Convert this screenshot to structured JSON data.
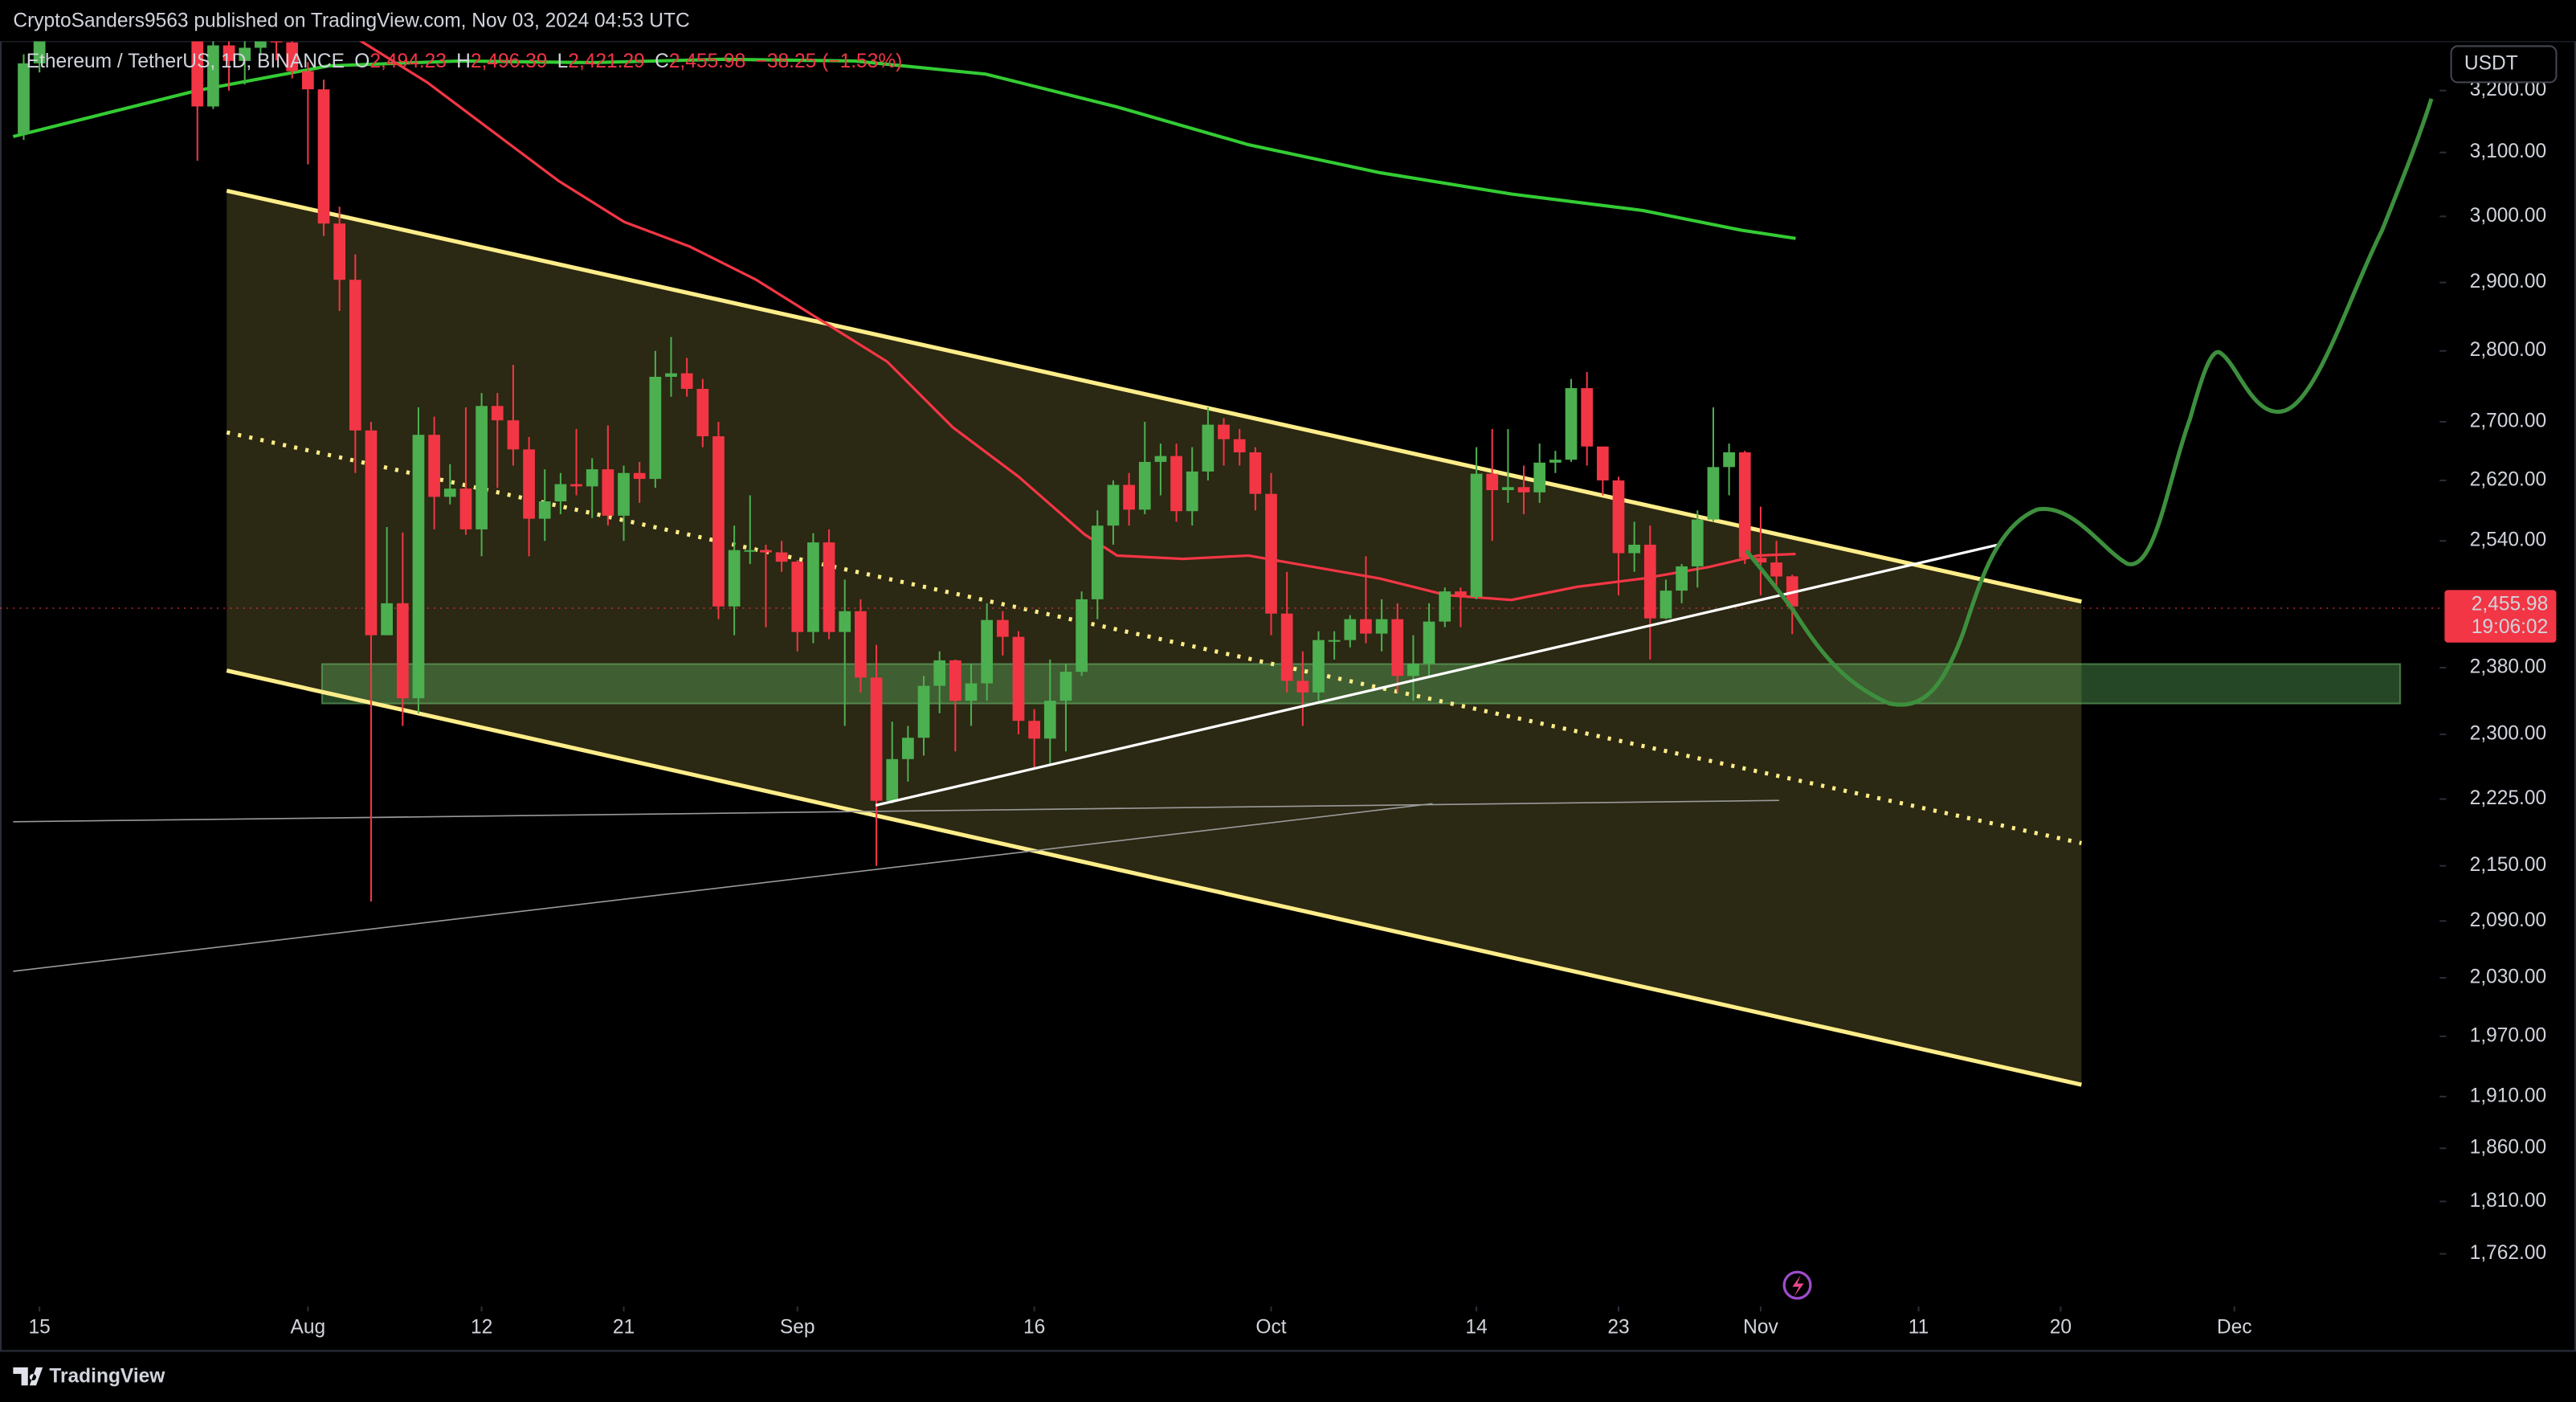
{
  "header": "CryptoSanders9563 published on TradingView.com, Nov 03, 2024 04:53 UTC",
  "footer_logo": "TradingView",
  "chart_data": {
    "type": "candlestick",
    "legend": {
      "symbol": "Ethereum / TetherUS, 1D, BINANCE",
      "items": [
        {
          "key": "O",
          "value": "2,494.23"
        },
        {
          "key": "H",
          "value": "2,496.39"
        },
        {
          "key": "L",
          "value": "2,421.29"
        },
        {
          "key": "C",
          "value": "2,455.98"
        }
      ],
      "change": "−38.25 (−1.53%)"
    },
    "currency": "USDT",
    "price_tag": {
      "value": 2455.98,
      "label": "2,455.98"
    },
    "countdown": "19:06:02",
    "up_color": "#4caf50",
    "down_color": "#f23645",
    "log_scale": true,
    "grid": false,
    "xlim": [
      "2024-07-12",
      "2024-12-14"
    ],
    "ylim": [
      1715,
      3282
    ],
    "xticks": [
      {
        "value": "2024-07-15",
        "label": "15"
      },
      {
        "value": "2024-08-01",
        "label": "Aug"
      },
      {
        "value": "2024-08-12",
        "label": "12"
      },
      {
        "value": "2024-08-21",
        "label": "21"
      },
      {
        "value": "2024-09-01",
        "label": "Sep"
      },
      {
        "value": "2024-09-16",
        "label": "16"
      },
      {
        "value": "2024-10-01",
        "label": "Oct"
      },
      {
        "value": "2024-10-14",
        "label": "14"
      },
      {
        "value": "2024-10-23",
        "label": "23"
      },
      {
        "value": "2024-11-01",
        "label": "Nov"
      },
      {
        "value": "2024-11-11",
        "label": "11"
      },
      {
        "value": "2024-11-20",
        "label": "20"
      },
      {
        "value": "2024-12-01",
        "label": "Dec"
      }
    ],
    "yticks": [
      {
        "value": 3200,
        "label": "3,200.00"
      },
      {
        "value": 3100,
        "label": "3,100.00"
      },
      {
        "value": 3000,
        "label": "3,000.00"
      },
      {
        "value": 2900,
        "label": "2,900.00"
      },
      {
        "value": 2800,
        "label": "2,800.00"
      },
      {
        "value": 2700,
        "label": "2,700.00"
      },
      {
        "value": 2620,
        "label": "2,620.00"
      },
      {
        "value": 2540,
        "label": "2,540.00"
      },
      {
        "value": 2380,
        "label": "2,380.00"
      },
      {
        "value": 2300,
        "label": "2,300.00"
      },
      {
        "value": 2225,
        "label": "2,225.00"
      },
      {
        "value": 2150,
        "label": "2,150.00"
      },
      {
        "value": 2090,
        "label": "2,090.00"
      },
      {
        "value": 2030,
        "label": "2,030.00"
      },
      {
        "value": 1970,
        "label": "1,970.00"
      },
      {
        "value": 1910,
        "label": "1,910.00"
      },
      {
        "value": 1860,
        "label": "1,860.00"
      },
      {
        "value": 1810,
        "label": "1,810.00"
      },
      {
        "value": 1762,
        "label": "1,762.00"
      }
    ],
    "x": [
      "2024-07-14",
      "2024-07-15",
      "2024-07-16",
      "2024-07-17",
      "2024-07-18",
      "2024-07-19",
      "2024-07-20",
      "2024-07-21",
      "2024-07-22",
      "2024-07-23",
      "2024-07-24",
      "2024-07-25",
      "2024-07-26",
      "2024-07-27",
      "2024-07-28",
      "2024-07-29",
      "2024-07-30",
      "2024-07-31",
      "2024-08-01",
      "2024-08-02",
      "2024-08-03",
      "2024-08-04",
      "2024-08-05",
      "2024-08-06",
      "2024-08-07",
      "2024-08-08",
      "2024-08-09",
      "2024-08-10",
      "2024-08-11",
      "2024-08-12",
      "2024-08-13",
      "2024-08-14",
      "2024-08-15",
      "2024-08-16",
      "2024-08-17",
      "2024-08-18",
      "2024-08-19",
      "2024-08-20",
      "2024-08-21",
      "2024-08-22",
      "2024-08-23",
      "2024-08-24",
      "2024-08-25",
      "2024-08-26",
      "2024-08-27",
      "2024-08-28",
      "2024-08-29",
      "2024-08-30",
      "2024-08-31",
      "2024-09-01",
      "2024-09-02",
      "2024-09-03",
      "2024-09-04",
      "2024-09-05",
      "2024-09-06",
      "2024-09-07",
      "2024-09-08",
      "2024-09-09",
      "2024-09-10",
      "2024-09-11",
      "2024-09-12",
      "2024-09-13",
      "2024-09-14",
      "2024-09-15",
      "2024-09-16",
      "2024-09-17",
      "2024-09-18",
      "2024-09-19",
      "2024-09-20",
      "2024-09-21",
      "2024-09-22",
      "2024-09-23",
      "2024-09-24",
      "2024-09-25",
      "2024-09-26",
      "2024-09-27",
      "2024-09-28",
      "2024-09-29",
      "2024-09-30",
      "2024-10-01",
      "2024-10-02",
      "2024-10-03",
      "2024-10-04",
      "2024-10-05",
      "2024-10-06",
      "2024-10-07",
      "2024-10-08",
      "2024-10-09",
      "2024-10-10",
      "2024-10-11",
      "2024-10-12",
      "2024-10-13",
      "2024-10-14",
      "2024-10-15",
      "2024-10-16",
      "2024-10-17",
      "2024-10-18",
      "2024-10-19",
      "2024-10-20",
      "2024-10-21",
      "2024-10-22",
      "2024-10-23",
      "2024-10-24",
      "2024-10-25",
      "2024-10-26",
      "2024-10-27",
      "2024-10-28",
      "2024-10-29",
      "2024-10-30",
      "2024-10-31",
      "2024-11-01",
      "2024-11-02",
      "2024-11-03"
    ],
    "open": [
      3130,
      3245,
      3485,
      3444,
      3387,
      3426,
      3505,
      3517,
      3536,
      3440,
      3480,
      3337,
      3174,
      3275,
      3249,
      3271,
      3318,
      3280,
      3232,
      3202,
      2989,
      2904,
      2688,
      2420,
      2460,
      2343,
      2682,
      2598,
      2609,
      2555,
      2722,
      2702,
      2662,
      2569,
      2592,
      2615,
      2612,
      2635,
      2573,
      2630,
      2622,
      2763,
      2768,
      2746,
      2680,
      2456,
      2528,
      2528,
      2525,
      2513,
      2424,
      2538,
      2424,
      2450,
      2368,
      2223,
      2271,
      2296,
      2358,
      2389,
      2340,
      2361,
      2439,
      2418,
      2316,
      2295,
      2340,
      2375,
      2465,
      2560,
      2614,
      2581,
      2645,
      2653,
      2579,
      2632,
      2696,
      2676,
      2658,
      2602,
      2447,
      2364,
      2350,
      2414,
      2414,
      2440,
      2422,
      2440,
      2370,
      2385,
      2437,
      2475,
      2468,
      2629,
      2607,
      2611,
      2604,
      2644,
      2648,
      2747,
      2666,
      2620,
      2524,
      2535,
      2441,
      2476,
      2507,
      2568,
      2638,
      2658,
      2518,
      2512,
      2494.23
    ],
    "high": [
      3260,
      3495,
      3500,
      3518,
      3486,
      3540,
      3537,
      3545,
      3563,
      3541,
      3490,
      3345,
      3290,
      3328,
      3283,
      3396,
      3365,
      3350,
      3247,
      3218,
      3015,
      2942,
      2700,
      2558,
      2551,
      2720,
      2707,
      2642,
      2720,
      2740,
      2740,
      2780,
      2679,
      2635,
      2630,
      2690,
      2650,
      2695,
      2640,
      2645,
      2800,
      2820,
      2790,
      2760,
      2700,
      2560,
      2600,
      2535,
      2540,
      2515,
      2550,
      2555,
      2490,
      2465,
      2408,
      2315,
      2310,
      2370,
      2400,
      2390,
      2385,
      2460,
      2450,
      2425,
      2330,
      2390,
      2385,
      2475,
      2580,
      2620,
      2630,
      2700,
      2670,
      2670,
      2665,
      2720,
      2705,
      2690,
      2665,
      2630,
      2500,
      2400,
      2425,
      2425,
      2445,
      2520,
      2465,
      2460,
      2420,
      2460,
      2480,
      2480,
      2665,
      2690,
      2690,
      2640,
      2670,
      2660,
      2760,
      2770,
      2665,
      2625,
      2565,
      2560,
      2490,
      2510,
      2580,
      2720,
      2670,
      2660,
      2585,
      2540,
      2496.39
    ],
    "low": [
      3120,
      3230,
      3370,
      3380,
      3370,
      3378,
      3483,
      3420,
      3427,
      3400,
      3300,
      3087,
      3170,
      3200,
      3210,
      3260,
      3250,
      3220,
      3081,
      2970,
      2858,
      2630,
      2111,
      2420,
      2310,
      2325,
      2555,
      2588,
      2548,
      2520,
      2610,
      2640,
      2520,
      2540,
      2575,
      2600,
      2570,
      2560,
      2540,
      2590,
      2610,
      2735,
      2735,
      2665,
      2440,
      2420,
      2510,
      2430,
      2500,
      2400,
      2410,
      2415,
      2310,
      2350,
      2150,
      2220,
      2245,
      2275,
      2325,
      2280,
      2310,
      2340,
      2395,
      2300,
      2260,
      2265,
      2280,
      2370,
      2440,
      2535,
      2560,
      2575,
      2600,
      2565,
      2560,
      2620,
      2640,
      2640,
      2580,
      2420,
      2350,
      2310,
      2340,
      2390,
      2405,
      2410,
      2400,
      2350,
      2340,
      2370,
      2430,
      2430,
      2465,
      2540,
      2590,
      2575,
      2590,
      2630,
      2645,
      2640,
      2600,
      2470,
      2500,
      2390,
      2440,
      2460,
      2480,
      2565,
      2600,
      2510,
      2470,
      2480,
      2421.29
    ],
    "close": [
      3245,
      3485,
      3444,
      3387,
      3426,
      3505,
      3517,
      3536,
      3440,
      3480,
      3337,
      3174,
      3275,
      3249,
      3271,
      3318,
      3280,
      3232,
      3202,
      2989,
      2904,
      2688,
      2420,
      2460,
      2343,
      2682,
      2598,
      2609,
      2555,
      2722,
      2702,
      2662,
      2569,
      2592,
      2615,
      2612,
      2635,
      2573,
      2630,
      2622,
      2763,
      2768,
      2746,
      2680,
      2456,
      2528,
      2528,
      2525,
      2513,
      2424,
      2538,
      2424,
      2450,
      2368,
      2223,
      2271,
      2296,
      2358,
      2389,
      2340,
      2361,
      2439,
      2418,
      2316,
      2295,
      2340,
      2375,
      2465,
      2560,
      2614,
      2581,
      2645,
      2653,
      2579,
      2632,
      2696,
      2676,
      2658,
      2602,
      2447,
      2364,
      2350,
      2414,
      2414,
      2440,
      2422,
      2440,
      2370,
      2385,
      2437,
      2475,
      2468,
      2629,
      2607,
      2611,
      2604,
      2644,
      2648,
      2747,
      2666,
      2620,
      2524,
      2535,
      2441,
      2476,
      2507,
      2568,
      2638,
      2658,
      2518,
      2512,
      2494,
      2455.98
    ]
  }
}
